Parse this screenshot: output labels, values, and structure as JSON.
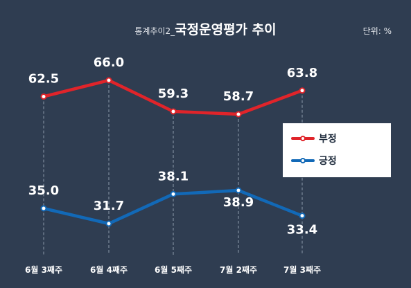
{
  "header": {
    "prefix": "통계추이2_",
    "title": "국정운영평가 추이",
    "unit": "단위: %"
  },
  "chart_data": {
    "type": "line",
    "title": "국정운영평가 추이",
    "categories": [
      "6월 3째주",
      "6월 4째주",
      "6월 5째주",
      "7월 2째주",
      "7월 3째주"
    ],
    "series": [
      {
        "name": "부정",
        "values": [
          62.5,
          66.0,
          59.3,
          58.7,
          63.8
        ],
        "color": "#e0242a"
      },
      {
        "name": "긍정",
        "values": [
          35.0,
          31.7,
          38.1,
          38.9,
          33.4
        ],
        "color": "#1269b7"
      }
    ],
    "legend": "right, boxed with photo",
    "grid": "vertical dashed lines at each category"
  },
  "legend": {
    "items": [
      {
        "label": "부정",
        "color": "#e0242a"
      },
      {
        "label": "긍정",
        "color": "#1269b7"
      }
    ]
  },
  "photo": {
    "icon": "person-photo"
  }
}
